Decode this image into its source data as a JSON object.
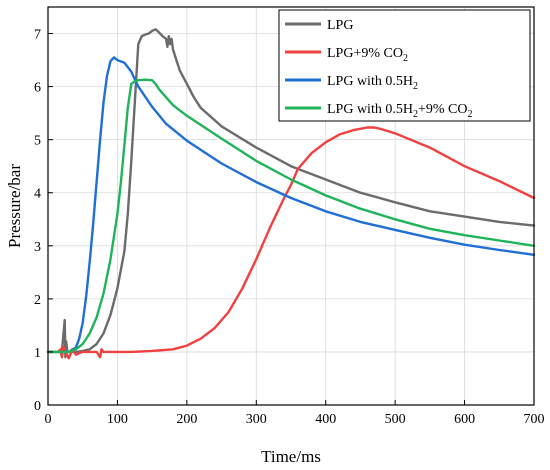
{
  "chart_data": {
    "type": "line",
    "xlabel": "Time/ms",
    "ylabel": "Pressure/bar",
    "xlim": [
      0,
      700
    ],
    "ylim": [
      0,
      7.5
    ],
    "xticks": [
      0,
      100,
      200,
      300,
      400,
      500,
      600,
      700
    ],
    "yticks": [
      0,
      1,
      2,
      3,
      4,
      5,
      6,
      7
    ],
    "grid": true,
    "legend_position": "top-right",
    "series": [
      {
        "name": "LPG",
        "legend_parts": [
          {
            "t": "LPG",
            "sub": false
          }
        ],
        "color": "#6b6b6b",
        "x": [
          0,
          20,
          22,
          24,
          25,
          26,
          28,
          30,
          40,
          50,
          60,
          70,
          80,
          90,
          100,
          110,
          115,
          120,
          125,
          130,
          135,
          140,
          145,
          150,
          155,
          160,
          165,
          170,
          172,
          174,
          176,
          178,
          180,
          185,
          190,
          200,
          210,
          220,
          250,
          300,
          350,
          400,
          450,
          500,
          550,
          600,
          650,
          700
        ],
        "y": [
          1.0,
          1.0,
          1.3,
          1.6,
          0.9,
          1.2,
          1.0,
          1.0,
          1.0,
          1.02,
          1.05,
          1.15,
          1.35,
          1.7,
          2.2,
          2.9,
          3.6,
          4.6,
          5.7,
          6.8,
          6.95,
          6.98,
          7.0,
          7.05,
          7.08,
          7.02,
          6.95,
          6.9,
          6.75,
          6.95,
          6.8,
          6.9,
          6.7,
          6.5,
          6.3,
          6.05,
          5.8,
          5.6,
          5.25,
          4.85,
          4.5,
          4.25,
          4.0,
          3.82,
          3.65,
          3.55,
          3.45,
          3.38
        ]
      },
      {
        "name": "LPG+9% CO2",
        "legend_parts": [
          {
            "t": "LPG+9% CO",
            "sub": false
          },
          {
            "t": "2",
            "sub": true
          }
        ],
        "color": "#f04040",
        "x": [
          0,
          15,
          18,
          20,
          22,
          25,
          30,
          35,
          40,
          50,
          60,
          70,
          75,
          77,
          80,
          100,
          120,
          150,
          180,
          200,
          220,
          240,
          260,
          280,
          300,
          320,
          340,
          350,
          360,
          380,
          400,
          420,
          440,
          460,
          470,
          480,
          500,
          550,
          600,
          650,
          700
        ],
        "y": [
          1.0,
          1.0,
          1.05,
          0.9,
          1.1,
          1.0,
          0.88,
          1.05,
          0.95,
          1.0,
          1.0,
          1.0,
          0.9,
          1.05,
          1.0,
          1.0,
          1.0,
          1.02,
          1.05,
          1.12,
          1.25,
          1.45,
          1.75,
          2.2,
          2.75,
          3.35,
          3.9,
          4.15,
          4.45,
          4.75,
          4.95,
          5.1,
          5.18,
          5.23,
          5.23,
          5.2,
          5.12,
          4.85,
          4.5,
          4.22,
          3.9
        ]
      },
      {
        "name": "LPG with 0.5H2",
        "legend_parts": [
          {
            "t": "LPG with 0.5H",
            "sub": false
          },
          {
            "t": "2",
            "sub": true
          }
        ],
        "color": "#1f6fd6",
        "x": [
          0,
          30,
          40,
          45,
          50,
          55,
          60,
          65,
          70,
          75,
          80,
          85,
          90,
          95,
          100,
          110,
          120,
          130,
          150,
          170,
          200,
          250,
          300,
          350,
          400,
          450,
          500,
          550,
          600,
          650,
          700
        ],
        "y": [
          1.0,
          1.0,
          1.08,
          1.25,
          1.55,
          2.05,
          2.7,
          3.4,
          4.2,
          5.0,
          5.7,
          6.2,
          6.48,
          6.55,
          6.5,
          6.45,
          6.28,
          6.0,
          5.62,
          5.3,
          4.98,
          4.55,
          4.2,
          3.9,
          3.65,
          3.45,
          3.3,
          3.15,
          3.02,
          2.92,
          2.83
        ]
      },
      {
        "name": "LPG with 0.5H2+9% CO2",
        "legend_parts": [
          {
            "t": "LPG with 0.5H",
            "sub": false
          },
          {
            "t": "2",
            "sub": true
          },
          {
            "t": "+9% CO",
            "sub": false
          },
          {
            "t": "2",
            "sub": true
          }
        ],
        "color": "#1fb45a",
        "x": [
          0,
          30,
          40,
          50,
          60,
          70,
          80,
          90,
          100,
          105,
          110,
          115,
          120,
          125,
          130,
          140,
          150,
          155,
          160,
          170,
          180,
          200,
          250,
          300,
          350,
          400,
          450,
          500,
          550,
          600,
          650,
          700
        ],
        "y": [
          1.0,
          1.0,
          1.05,
          1.15,
          1.35,
          1.65,
          2.1,
          2.75,
          3.6,
          4.2,
          4.9,
          5.6,
          6.05,
          6.1,
          6.12,
          6.13,
          6.12,
          6.05,
          5.95,
          5.8,
          5.65,
          5.45,
          5.02,
          4.6,
          4.25,
          3.95,
          3.7,
          3.5,
          3.32,
          3.2,
          3.1,
          3.0
        ]
      }
    ]
  }
}
